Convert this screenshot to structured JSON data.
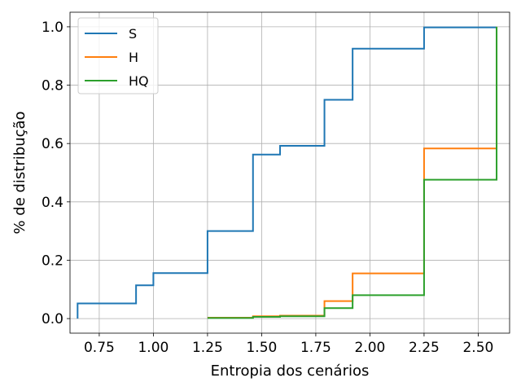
{
  "chart_data": {
    "type": "line",
    "step": "post",
    "title": "",
    "xlabel": "Entropia dos cenários",
    "ylabel": "% de distribução",
    "xlim": [
      0.615,
      2.645
    ],
    "ylim": [
      -0.05,
      1.05
    ],
    "xticks": [
      0.75,
      1.0,
      1.25,
      1.5,
      1.75,
      2.0,
      2.25,
      2.5
    ],
    "xtick_labels": [
      "0.75",
      "1.00",
      "1.25",
      "1.50",
      "1.75",
      "2.00",
      "2.25",
      "2.50"
    ],
    "yticks": [
      0.0,
      0.2,
      0.4,
      0.6,
      0.8,
      1.0
    ],
    "ytick_labels": [
      "0.0",
      "0.2",
      "0.4",
      "0.6",
      "0.8",
      "1.0"
    ],
    "grid": true,
    "legend_position": "top-left",
    "series": [
      {
        "name": "S",
        "color": "#1f77b4",
        "x": [
          0.65,
          0.65,
          0.92,
          1.0,
          1.25,
          1.46,
          1.585,
          1.79,
          1.92,
          2.25,
          2.585
        ],
        "y": [
          0.0,
          0.052,
          0.114,
          0.156,
          0.3,
          0.562,
          0.592,
          0.75,
          0.925,
          0.998,
          1.0
        ]
      },
      {
        "name": "H",
        "color": "#ff7f0e",
        "x": [
          1.25,
          1.46,
          1.585,
          1.79,
          1.92,
          2.25,
          2.585,
          2.585
        ],
        "y": [
          0.003,
          0.008,
          0.01,
          0.06,
          0.155,
          0.583,
          0.583,
          1.0
        ]
      },
      {
        "name": "HQ",
        "color": "#2ca02c",
        "x": [
          1.25,
          1.46,
          1.585,
          1.79,
          1.92,
          2.25,
          2.585,
          2.585
        ],
        "y": [
          0.002,
          0.006,
          0.008,
          0.036,
          0.08,
          0.476,
          0.476,
          1.0
        ]
      }
    ]
  }
}
